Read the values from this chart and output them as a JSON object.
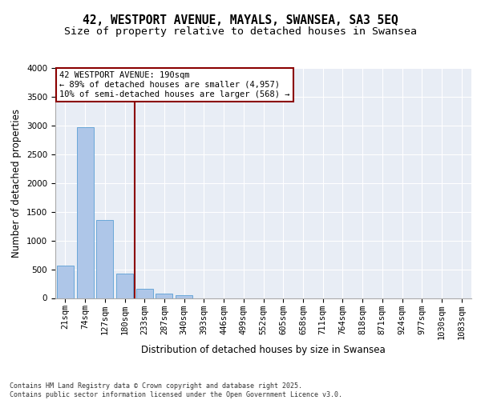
{
  "title1": "42, WESTPORT AVENUE, MAYALS, SWANSEA, SA3 5EQ",
  "title2": "Size of property relative to detached houses in Swansea",
  "xlabel": "Distribution of detached houses by size in Swansea",
  "ylabel": "Number of detached properties",
  "categories": [
    "21sqm",
    "74sqm",
    "127sqm",
    "180sqm",
    "233sqm",
    "287sqm",
    "340sqm",
    "393sqm",
    "446sqm",
    "499sqm",
    "552sqm",
    "605sqm",
    "658sqm",
    "711sqm",
    "764sqm",
    "818sqm",
    "871sqm",
    "924sqm",
    "977sqm",
    "1030sqm",
    "1083sqm"
  ],
  "values": [
    560,
    2970,
    1360,
    420,
    160,
    80,
    50,
    0,
    0,
    0,
    0,
    0,
    0,
    0,
    0,
    0,
    0,
    0,
    0,
    0,
    0
  ],
  "bar_color": "#aec6e8",
  "bar_edge_color": "#5a9fd4",
  "bg_color": "#e8edf5",
  "annotation_text": "42 WESTPORT AVENUE: 190sqm\n← 89% of detached houses are smaller (4,957)\n10% of semi-detached houses are larger (568) →",
  "annotation_box_color": "white",
  "annotation_box_edge_color": "#8b0000",
  "vline_x": 3.5,
  "vline_color": "#8b0000",
  "ylim": [
    0,
    4000
  ],
  "yticks": [
    0,
    500,
    1000,
    1500,
    2000,
    2500,
    3000,
    3500,
    4000
  ],
  "footer": "Contains HM Land Registry data © Crown copyright and database right 2025.\nContains public sector information licensed under the Open Government Licence v3.0.",
  "title_fontsize": 10.5,
  "subtitle_fontsize": 9.5,
  "tick_fontsize": 7.5,
  "label_fontsize": 8.5,
  "annotation_fontsize": 7.5,
  "footer_fontsize": 6.0
}
